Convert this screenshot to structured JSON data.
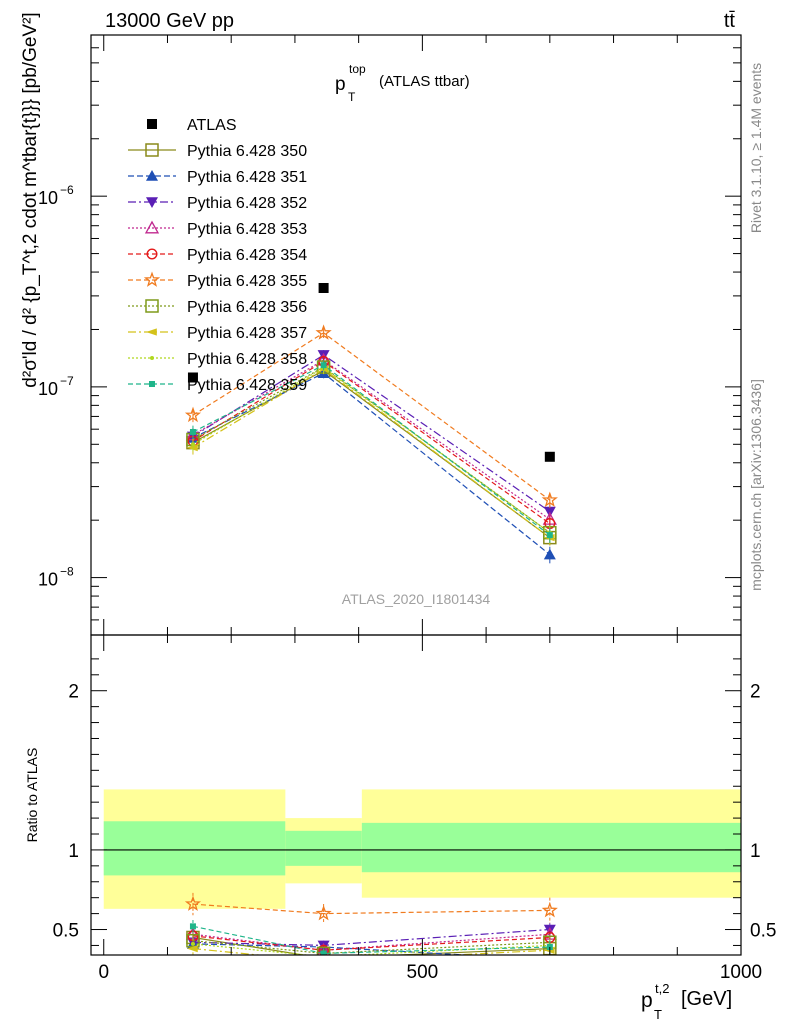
{
  "header": {
    "energy_label": "13000 GeV pp",
    "process_label": "tt̄"
  },
  "side_labels": {
    "rivet": "Rivet 3.1.10, ≥ 1.4M events",
    "mcplots": "mcplots.cern.ch [arXiv:1306.3436]"
  },
  "chart_data": [
    {
      "type": "line",
      "panel": "main",
      "title": "p_T^top (ATLAS ttbar)",
      "title_main": "p",
      "title_sub": "T",
      "title_sup": "top",
      "title_rest": "(ATLAS ttbar)",
      "ylabel": "d²σ'ld / d² {p_T^t,2 cdot m^tbar{t}}} [pb/GeV²]",
      "y_scale": "log",
      "ylim": [
        5e-09,
        7e-06
      ],
      "xlim": [
        -20,
        1000
      ],
      "y_tick_labels": [
        {
          "value": 1e-08,
          "mant": "10",
          "exp": "−8"
        },
        {
          "value": 1e-07,
          "mant": "10",
          "exp": "−7"
        },
        {
          "value": 1e-06,
          "mant": "10",
          "exp": "−6"
        }
      ],
      "watermark": "ATLAS_2020_I1801434",
      "legend_position": "top-left",
      "x": [
        140,
        345,
        700
      ],
      "series": [
        {
          "name": "ATLAS",
          "color": "#000000",
          "marker": "square-filled",
          "dash": "none",
          "values": [
            1.12e-07,
            3.3e-07,
            4.3e-08
          ],
          "errors": [
            0,
            0,
            0
          ]
        },
        {
          "name": "Pythia 6.428 350",
          "color": "#8a8a1a",
          "marker": "square-open",
          "dash": "solid",
          "values": [
            5.1e-08,
            1.22e-07,
            1.62e-08
          ],
          "errors": [
            0.08,
            0.06,
            0.09
          ]
        },
        {
          "name": "Pythia 6.428 351",
          "color": "#1f4fb5",
          "marker": "triangle-up-filled",
          "dash": "6,3",
          "values": [
            5.4e-08,
            1.18e-07,
            1.32e-08
          ],
          "errors": [
            0.08,
            0.06,
            0.1
          ]
        },
        {
          "name": "Pythia 6.428 352",
          "color": "#5a1fb5",
          "marker": "triangle-down-filled",
          "dash": "8,3,2,3",
          "values": [
            5.5e-08,
            1.47e-07,
            2.22e-08
          ],
          "errors": [
            0.08,
            0.06,
            0.09
          ]
        },
        {
          "name": "Pythia 6.428 353",
          "color": "#c0288f",
          "marker": "triangle-up-open",
          "dash": "2,2",
          "values": [
            5.6e-08,
            1.38e-07,
            2.02e-08
          ],
          "errors": [
            0.08,
            0.06,
            0.09
          ]
        },
        {
          "name": "Pythia 6.428 354",
          "color": "#e41a1a",
          "marker": "circle-open",
          "dash": "5,3",
          "values": [
            5.2e-08,
            1.36e-07,
            1.92e-08
          ],
          "errors": [
            0.08,
            0.06,
            0.09
          ]
        },
        {
          "name": "Pythia 6.428 355",
          "color": "#f07b1f",
          "marker": "star-open",
          "dash": "5,3",
          "values": [
            7.1e-08,
            1.92e-07,
            2.55e-08
          ],
          "errors": [
            0.08,
            0.06,
            0.09
          ]
        },
        {
          "name": "Pythia 6.428 356",
          "color": "#7f9a1a",
          "marker": "square-open",
          "dash": "2,2",
          "values": [
            5.3e-08,
            1.27e-07,
            1.72e-08
          ],
          "errors": [
            0.08,
            0.06,
            0.09
          ]
        },
        {
          "name": "Pythia 6.428 357",
          "color": "#d4c21a",
          "marker": "triangle-left",
          "dash": "8,3,2,3",
          "values": [
            4.8e-08,
            1.24e-07,
            1.62e-08
          ],
          "errors": [
            0.08,
            0.06,
            0.09
          ]
        },
        {
          "name": "Pythia 6.428 358",
          "color": "#b0d81f",
          "marker": "dot",
          "dash": "2,2",
          "values": [
            5e-08,
            1.26e-07,
            1.72e-08
          ],
          "errors": [
            0.08,
            0.06,
            0.09
          ]
        },
        {
          "name": "Pythia 6.428 359",
          "color": "#1fb58a",
          "marker": "square-small",
          "dash": "5,3",
          "values": [
            5.8e-08,
            1.3e-07,
            1.67e-08
          ],
          "errors": [
            0.08,
            0.06,
            0.09
          ]
        }
      ]
    },
    {
      "type": "line",
      "panel": "ratio",
      "ylabel": "Ratio to ATLAS",
      "xlabel": "p_T^t,2 [GeV]",
      "xlabel_main": "p",
      "xlabel_sub": "T",
      "xlabel_sup": "t,2",
      "xlabel_rest": "[GeV]",
      "ylim": [
        0.34,
        2.35
      ],
      "xlim": [
        -20,
        1000
      ],
      "x_ticks": [
        0,
        500,
        1000
      ],
      "x_tick_labels": [
        "0",
        "500",
        "1000"
      ],
      "y_ticks": [
        0.5,
        1,
        2
      ],
      "y_tick_labels": [
        "0.5",
        "1",
        "2"
      ],
      "bands": [
        {
          "x0": 0,
          "x1": 285,
          "outer": [
            0.63,
            1.38
          ],
          "inner": [
            0.84,
            1.18
          ]
        },
        {
          "x0": 285,
          "x1": 405,
          "outer": [
            0.79,
            1.2
          ],
          "inner": [
            0.9,
            1.12
          ]
        },
        {
          "x0": 405,
          "x1": 1000,
          "outer": [
            0.7,
            1.38
          ],
          "inner": [
            0.86,
            1.17
          ]
        }
      ],
      "x": [
        140,
        345,
        700
      ],
      "series": [
        {
          "name": "Pythia 6.428 350",
          "values": [
            0.45,
            0.32,
            0.38
          ],
          "errors": [
            0.04,
            0.03,
            0.04
          ]
        },
        {
          "name": "Pythia 6.428 351",
          "values": [
            0.41,
            0.39,
            0.31
          ],
          "errors": [
            0.04,
            0.03,
            0.04
          ]
        },
        {
          "name": "Pythia 6.428 352",
          "values": [
            0.42,
            0.4,
            0.5
          ],
          "errors": [
            0.04,
            0.03,
            0.04
          ]
        },
        {
          "name": "Pythia 6.428 353",
          "values": [
            0.47,
            0.37,
            0.47
          ],
          "errors": [
            0.04,
            0.03,
            0.04
          ]
        },
        {
          "name": "Pythia 6.428 354",
          "values": [
            0.46,
            0.37,
            0.45
          ],
          "errors": [
            0.04,
            0.03,
            0.04
          ]
        },
        {
          "name": "Pythia 6.428 355",
          "values": [
            0.66,
            0.6,
            0.62
          ],
          "errors": [
            0.07,
            0.06,
            0.08
          ]
        },
        {
          "name": "Pythia 6.428 356",
          "values": [
            0.43,
            0.35,
            0.42
          ],
          "errors": [
            0.04,
            0.03,
            0.04
          ]
        },
        {
          "name": "Pythia 6.428 357",
          "values": [
            0.38,
            0.3,
            0.37
          ],
          "errors": [
            0.04,
            0.03,
            0.04
          ]
        },
        {
          "name": "Pythia 6.428 358",
          "values": [
            0.41,
            0.33,
            0.4
          ],
          "errors": [
            0.04,
            0.03,
            0.04
          ]
        },
        {
          "name": "Pythia 6.428 359",
          "values": [
            0.52,
            0.35,
            0.39
          ],
          "errors": [
            0.04,
            0.03,
            0.04
          ]
        }
      ]
    }
  ]
}
